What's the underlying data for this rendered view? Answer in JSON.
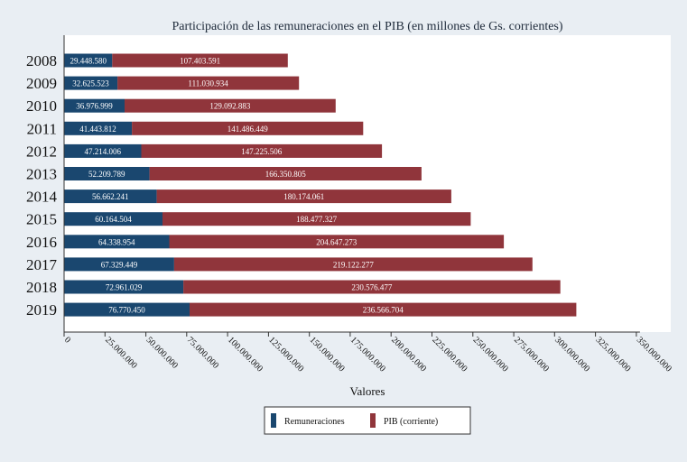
{
  "chart_data": {
    "type": "bar",
    "orientation": "horizontal",
    "stacked": true,
    "title": "Participación de las remuneraciones en el PIB (en millones de Gs. corrientes)",
    "xlabel": "Valores",
    "ylabel": "",
    "categories": [
      "2008",
      "2009",
      "2010",
      "2011",
      "2012",
      "2013",
      "2014",
      "2015",
      "2016",
      "2017",
      "2018",
      "2019"
    ],
    "series": [
      {
        "name": "Remuneraciones",
        "color": "#1a476f",
        "values": [
          29448580,
          32625523,
          36976999,
          41443812,
          47214006,
          52209789,
          56662241,
          60164504,
          64338954,
          67329449,
          72961029,
          76770450
        ],
        "labels": [
          "29.448.580",
          "32.625.523",
          "36.976.999",
          "41.443.812",
          "47.214.006",
          "52.209.789",
          "56.662.241",
          "60.164.504",
          "64.338.954",
          "67.329.449",
          "72.961.029",
          "76.770.450"
        ]
      },
      {
        "name": "PIB (corriente)",
        "color": "#90353b",
        "values": [
          107403591,
          111030934,
          129092883,
          141486449,
          147225506,
          166350805,
          180174061,
          188477327,
          204647273,
          219122277,
          230576477,
          236566704
        ],
        "labels": [
          "107.403.591",
          "111.030.934",
          "129.092.883",
          "141.486.449",
          "147.225.506",
          "166.350.805",
          "180.174.061",
          "188.477.327",
          "204.647.273",
          "219.122.277",
          "230.576.477",
          "236.566.704"
        ]
      }
    ],
    "xlim": [
      0,
      360000000
    ],
    "xticks": [
      0,
      25000000,
      50000000,
      75000000,
      100000000,
      125000000,
      150000000,
      175000000,
      200000000,
      225000000,
      250000000,
      275000000,
      300000000,
      325000000,
      350000000
    ],
    "xtick_labels": [
      "0",
      "25.000.000",
      "50.000.000",
      "75.000.000",
      "100.000.000",
      "125.000.000",
      "150.000.000",
      "175.000.000",
      "200.000.000",
      "225.000.000",
      "250.000.000",
      "275.000.000",
      "300.000.000",
      "325.000.000",
      "350.000.000"
    ],
    "grid": false,
    "legend_position": "bottom",
    "colors": {
      "background": "#e9eef3",
      "plot_background": "#ffffff"
    }
  }
}
